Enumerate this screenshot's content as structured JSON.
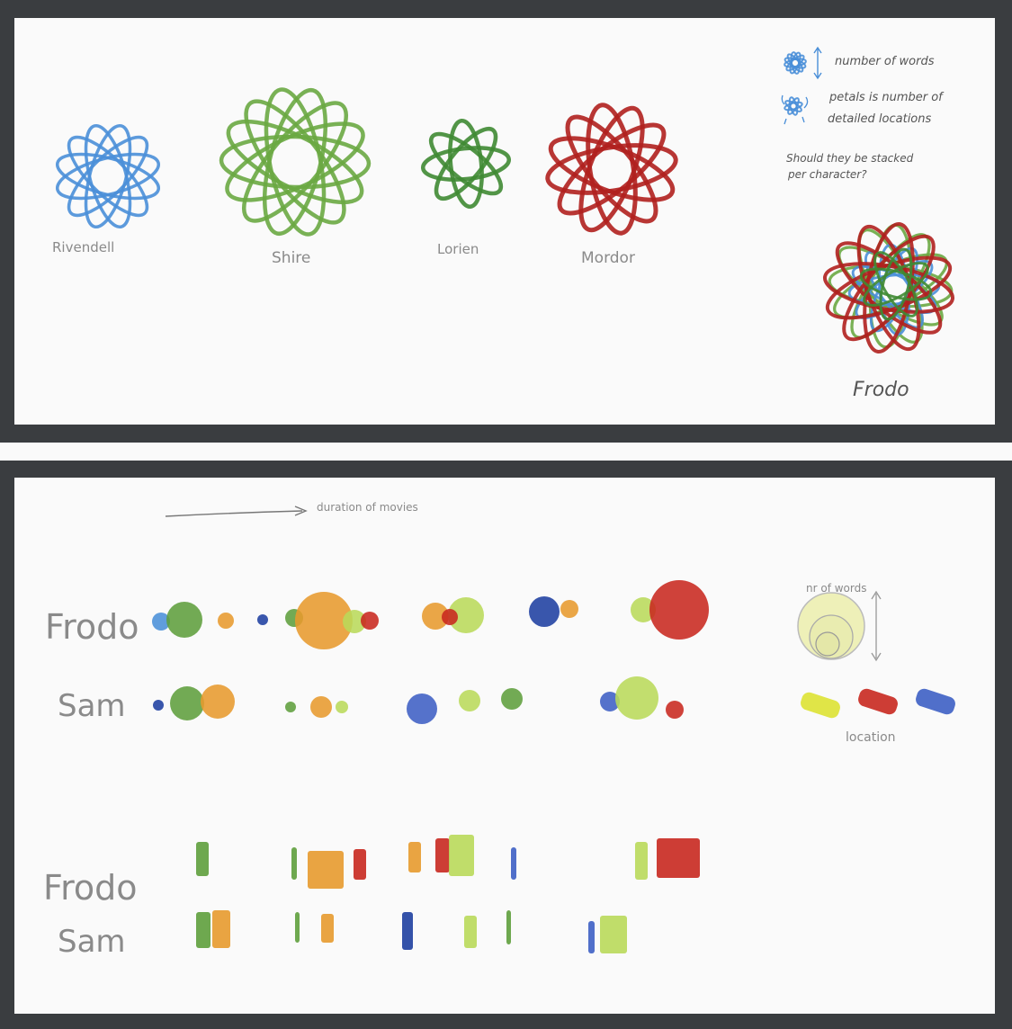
{
  "colors": {
    "rivendell": "#4a8fd8",
    "shire": "#6aa843",
    "lorien": "#3f8a33",
    "mordor": "#b0201e",
    "orange": "#e79a2e",
    "lime": "#b9d95a",
    "darkblue": "#1e3fa0",
    "red": "#c8281f",
    "yellow": "#dde233",
    "blue": "#3d5fc4",
    "green": "#5e9e3c"
  },
  "top_panel": {
    "flowers": [
      {
        "label": "Rivendell",
        "color": "rivendell",
        "petals": 6
      },
      {
        "label": "Shire",
        "color": "shire",
        "petals": 7
      },
      {
        "label": "Lorien",
        "color": "lorien",
        "petals": 4
      },
      {
        "label": "Mordor",
        "color": "mordor",
        "petals": 6
      }
    ],
    "legend": {
      "size_text": "number of words",
      "petals_text_1": "petals is number of",
      "petals_text_2": "detailed locations",
      "question_1": "Should they be stacked",
      "question_2": "per character?"
    },
    "combined_label": "Frodo"
  },
  "bottom_panel": {
    "duration_label": "duration of movies",
    "row_labels": {
      "frodo": "Frodo",
      "sam": "Sam"
    },
    "legend": {
      "size_label": "nr of words",
      "location_label": "location"
    }
  }
}
